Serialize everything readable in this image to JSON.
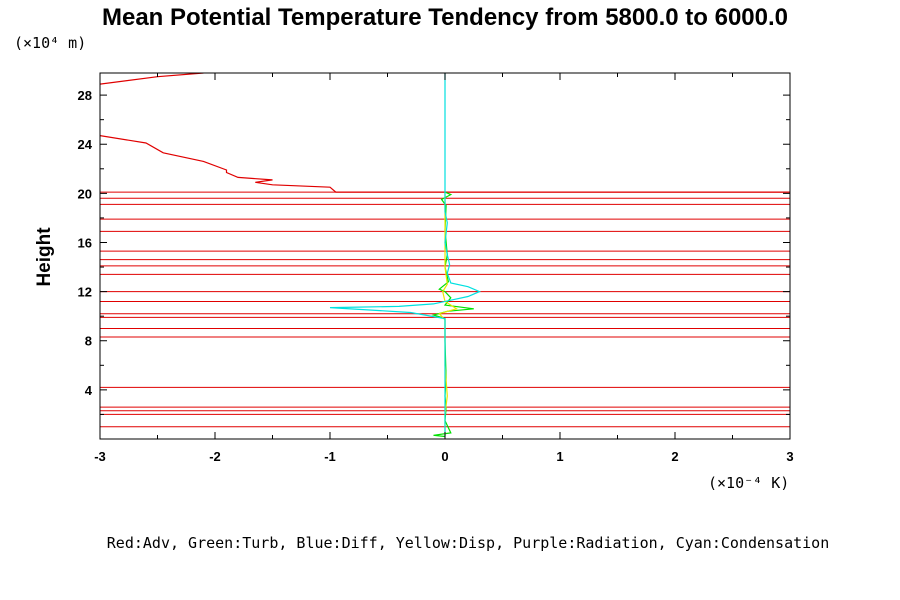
{
  "chart_data": {
    "type": "line",
    "title": "Mean Potential Temperature Tendency from 5800.0 to 6000.0",
    "ylabel": "Height",
    "y_unit": "(×10⁴ m)",
    "x_unit": "(×10⁻⁴ K)",
    "xlim": [
      -3,
      3
    ],
    "ylim": [
      0,
      29.8
    ],
    "x_ticks": [
      -3,
      -2,
      -1,
      0,
      1,
      2,
      3
    ],
    "y_ticks": [
      4,
      8,
      12,
      16,
      20,
      24,
      28
    ],
    "legend_text": "Red:Adv, Green:Turb, Blue:Diff, Yellow:Disp, Purple:Radiation, Cyan:Condensation",
    "colors": {
      "Adv": "#e00000",
      "Turb": "#00e000",
      "Diff": "#0000ff",
      "Disp": "#e8e800",
      "Radiation": "#c000c0",
      "Condensation": "#00e0e0"
    },
    "adv_horizontal_levels": [
      1.0,
      2.0,
      2.3,
      2.6,
      4.2,
      8.3,
      9.0,
      9.9,
      10.2,
      11.2,
      12.0,
      13.4,
      14.1,
      14.6,
      15.3,
      16.9,
      17.9,
      19.1,
      19.6,
      20.1
    ],
    "series": [
      {
        "name": "Adv (upper)",
        "color": "#e00000",
        "points": [
          [
            -3,
            24.7
          ],
          [
            -2.6,
            24.1
          ],
          [
            -2.45,
            23.3
          ],
          [
            -2.1,
            22.6
          ],
          [
            -1.9,
            21.9
          ],
          [
            -1.9,
            21.7
          ],
          [
            -1.8,
            21.3
          ],
          [
            -1.5,
            21.1
          ],
          [
            -1.65,
            20.9
          ],
          [
            -1.5,
            20.7
          ],
          [
            -1.0,
            20.5
          ],
          [
            -0.95,
            20.1
          ],
          [
            3,
            20.1
          ]
        ]
      },
      {
        "name": "Adv (top)",
        "color": "#e00000",
        "points": [
          [
            -3,
            28.9
          ],
          [
            -2.5,
            29.5
          ],
          [
            -2.1,
            29.8
          ]
        ]
      },
      {
        "name": "Turb",
        "color": "#00e000",
        "points": [
          [
            0,
            0.2
          ],
          [
            -0.1,
            0.3
          ],
          [
            0.05,
            0.5
          ],
          [
            0.0,
            1.5
          ],
          [
            0.01,
            2.5
          ],
          [
            0.0,
            3.5
          ],
          [
            0.01,
            5
          ],
          [
            0.0,
            8
          ],
          [
            0.0,
            9.8
          ],
          [
            -0.1,
            10.1
          ],
          [
            0.02,
            10.4
          ],
          [
            0.25,
            10.6
          ],
          [
            0.0,
            10.9
          ],
          [
            0.05,
            11.5
          ],
          [
            0.0,
            12.0
          ],
          [
            -0.05,
            12.2
          ],
          [
            0.03,
            12.8
          ],
          [
            0.0,
            14
          ],
          [
            0.02,
            15
          ],
          [
            0.0,
            17
          ],
          [
            0.01,
            19
          ],
          [
            -0.03,
            19.5
          ],
          [
            0.05,
            19.9
          ],
          [
            0.0,
            20.1
          ]
        ]
      },
      {
        "name": "Disp",
        "color": "#e8e800",
        "points": [
          [
            0,
            0.3
          ],
          [
            0.0,
            2
          ],
          [
            0.02,
            3.5
          ],
          [
            0.0,
            6
          ],
          [
            0.0,
            9.7
          ],
          [
            -0.05,
            10.2
          ],
          [
            0.1,
            10.6
          ],
          [
            0.0,
            11.2
          ],
          [
            -0.02,
            12.0
          ],
          [
            0.02,
            12.6
          ],
          [
            0.0,
            14
          ],
          [
            0.0,
            20
          ]
        ]
      },
      {
        "name": "Condensation",
        "color": "#00e0e0",
        "points": [
          [
            0,
            0.2
          ],
          [
            0.0,
            9.8
          ],
          [
            -0.3,
            10.3
          ],
          [
            -1.0,
            10.7
          ],
          [
            -0.4,
            10.8
          ],
          [
            -0.1,
            11.0
          ],
          [
            0.05,
            11.3
          ],
          [
            0.2,
            11.6
          ],
          [
            0.3,
            12.0
          ],
          [
            0.2,
            12.4
          ],
          [
            0.05,
            12.7
          ],
          [
            0.02,
            13.5
          ],
          [
            0.04,
            14.2
          ],
          [
            0.02,
            15
          ],
          [
            0.0,
            16
          ],
          [
            0.02,
            17.6
          ],
          [
            0.0,
            18.5
          ],
          [
            0.0,
            29.8
          ]
        ]
      }
    ]
  }
}
